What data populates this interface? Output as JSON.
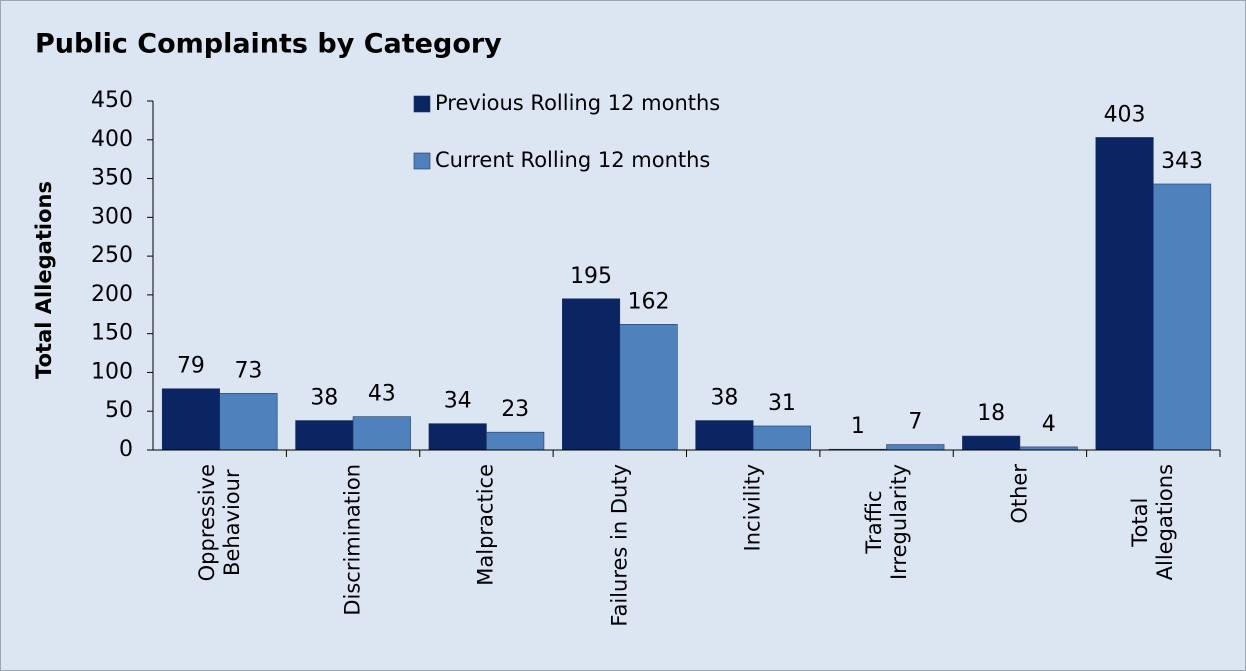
{
  "chart_data": {
    "type": "bar",
    "title": "Public Complaints by Category",
    "y_label": "Total Allegations",
    "categories": [
      "Oppressive\nBehaviour",
      "Discrimination",
      "Malpractice",
      "Failures in Duty",
      "Incivility",
      "Traffic\nIrregularity",
      "Other",
      "Total Allegations"
    ],
    "series": [
      {
        "name": "Previous Rolling 12 months",
        "color": "#0b2462",
        "values": [
          79,
          38,
          34,
          195,
          38,
          1,
          18,
          403
        ]
      },
      {
        "name": "Current Rolling 12 months",
        "color": "#4f81bd",
        "values": [
          73,
          43,
          23,
          162,
          31,
          7,
          4,
          343
        ]
      }
    ],
    "ylim": [
      0,
      450
    ],
    "yticks": [
      0,
      50,
      100,
      150,
      200,
      250,
      300,
      350,
      400,
      450
    ],
    "legend": "top-center",
    "grid": false
  }
}
